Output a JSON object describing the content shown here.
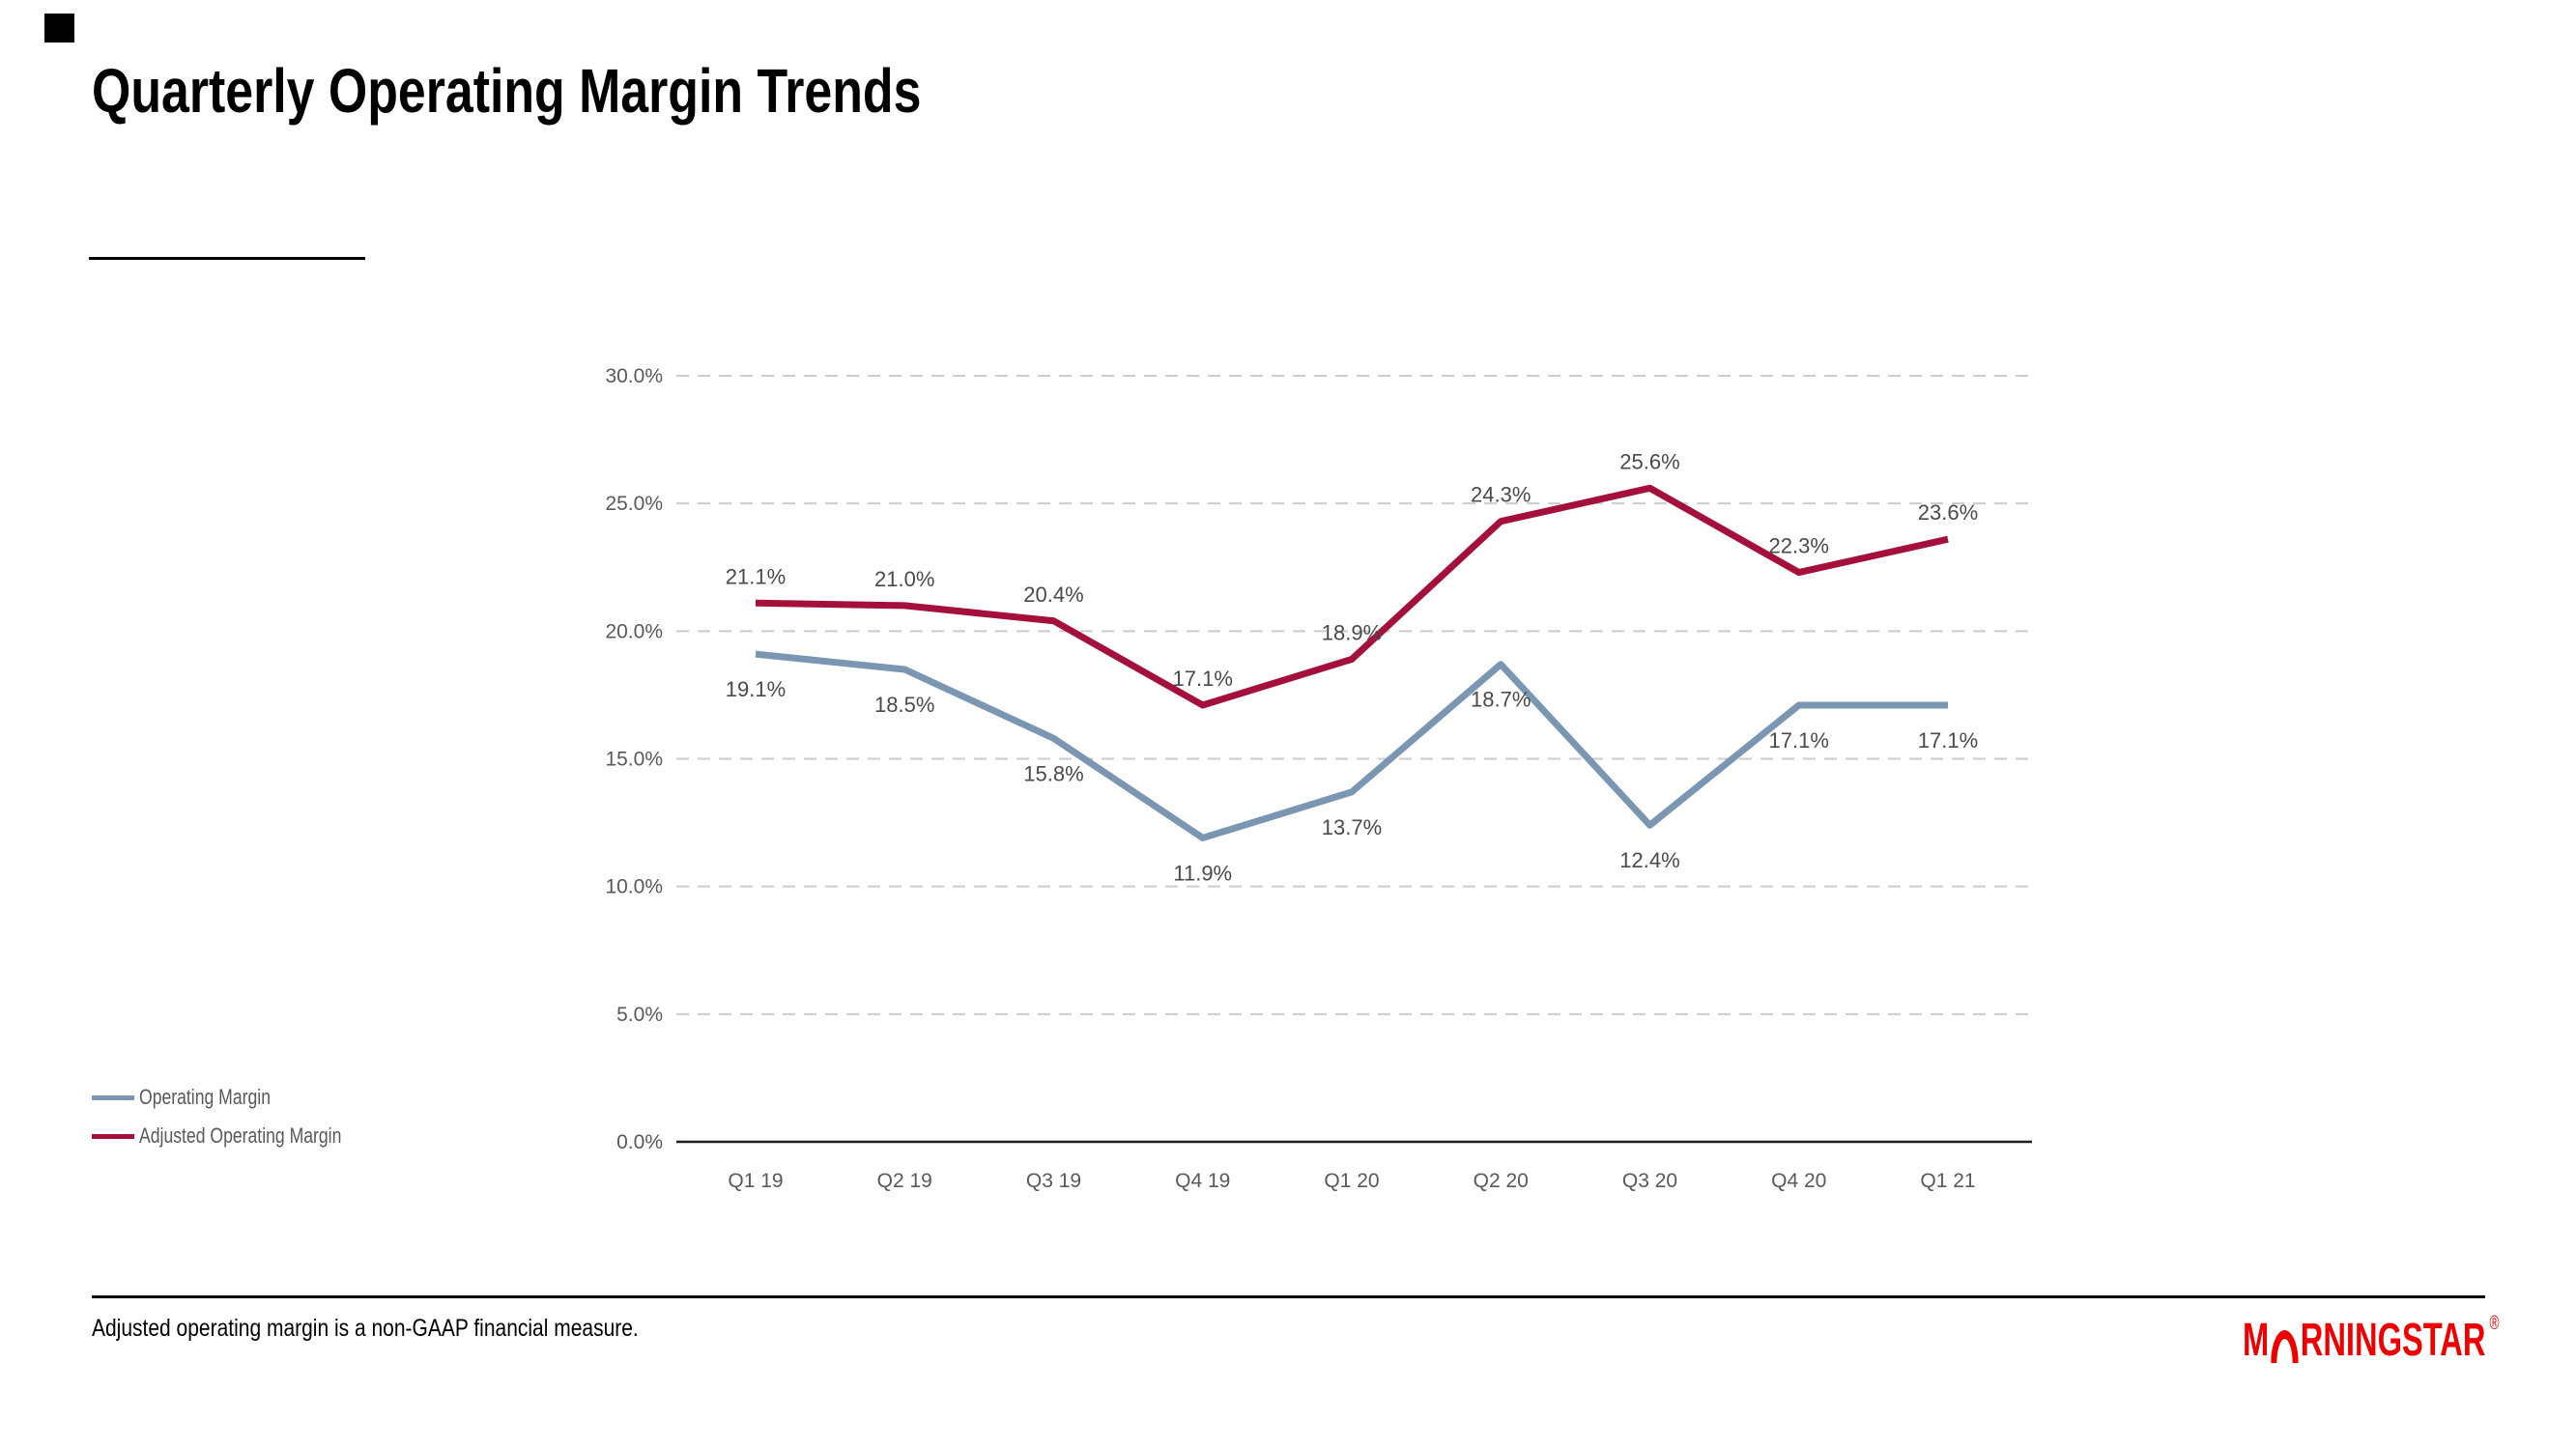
{
  "header": {
    "title": "Quarterly Operating Margin Trends"
  },
  "icons": {
    "brand_mark": "black-square",
    "logo_arch": "morningstar-arch"
  },
  "legend": {
    "items": [
      {
        "label": "Operating Margin",
        "color": "#7A96B2"
      },
      {
        "label": "Adjusted Operating Margin",
        "color": "#A50F3C"
      }
    ]
  },
  "footer": {
    "footnote": "Adjusted operating margin is a non-GAAP financial measure.",
    "logo": {
      "pre": "M",
      "post": "RNINGSTAR",
      "registered": "®",
      "color": "#EE0000"
    }
  },
  "chart_data": {
    "type": "line",
    "title": "Quarterly Operating Margin Trends",
    "categories": [
      "Q1 19",
      "Q2 19",
      "Q3 19",
      "Q4 19",
      "Q1 20",
      "Q2 20",
      "Q3 20",
      "Q4 20",
      "Q1 21"
    ],
    "series": [
      {
        "name": "Operating Margin",
        "color": "#7A96B2",
        "label_position": "below",
        "values": [
          19.1,
          18.5,
          15.8,
          11.9,
          13.7,
          18.7,
          12.4,
          17.1,
          17.1
        ],
        "data_labels": [
          "19.1%",
          "18.5%",
          "15.8%",
          "11.9%",
          "13.7%",
          "18.7%",
          "12.4%",
          "17.1%",
          "17.1%"
        ]
      },
      {
        "name": "Adjusted Operating Margin",
        "color": "#A50F3C",
        "label_position": "above",
        "values": [
          21.1,
          21.0,
          20.4,
          17.1,
          18.9,
          24.3,
          25.6,
          22.3,
          23.6
        ],
        "data_labels": [
          "21.1%",
          "21.0%",
          "20.4%",
          "17.1%",
          "18.9%",
          "24.3%",
          "25.6%",
          "22.3%",
          "23.6%"
        ]
      }
    ],
    "y_axis": {
      "min": 0,
      "max": 30,
      "step": 5,
      "tick_labels": [
        "0.0%",
        "5.0%",
        "10.0%",
        "15.0%",
        "20.0%",
        "25.0%",
        "30.0%"
      ]
    },
    "x_axis": {
      "labels": [
        "Q1 19",
        "Q2 19",
        "Q3 19",
        "Q4 19",
        "Q1 20",
        "Q2 20",
        "Q3 20",
        "Q4 20",
        "Q1 21"
      ]
    },
    "ylim": [
      0,
      30
    ],
    "grid": {
      "horizontal": "dashed",
      "vertical": "none",
      "color": "#CCCCCC"
    },
    "axis_color": "#1F1F1F",
    "tick_text_color": "#595959",
    "data_label_color": "#4A4A4A",
    "legend_position": "bottom-left"
  }
}
